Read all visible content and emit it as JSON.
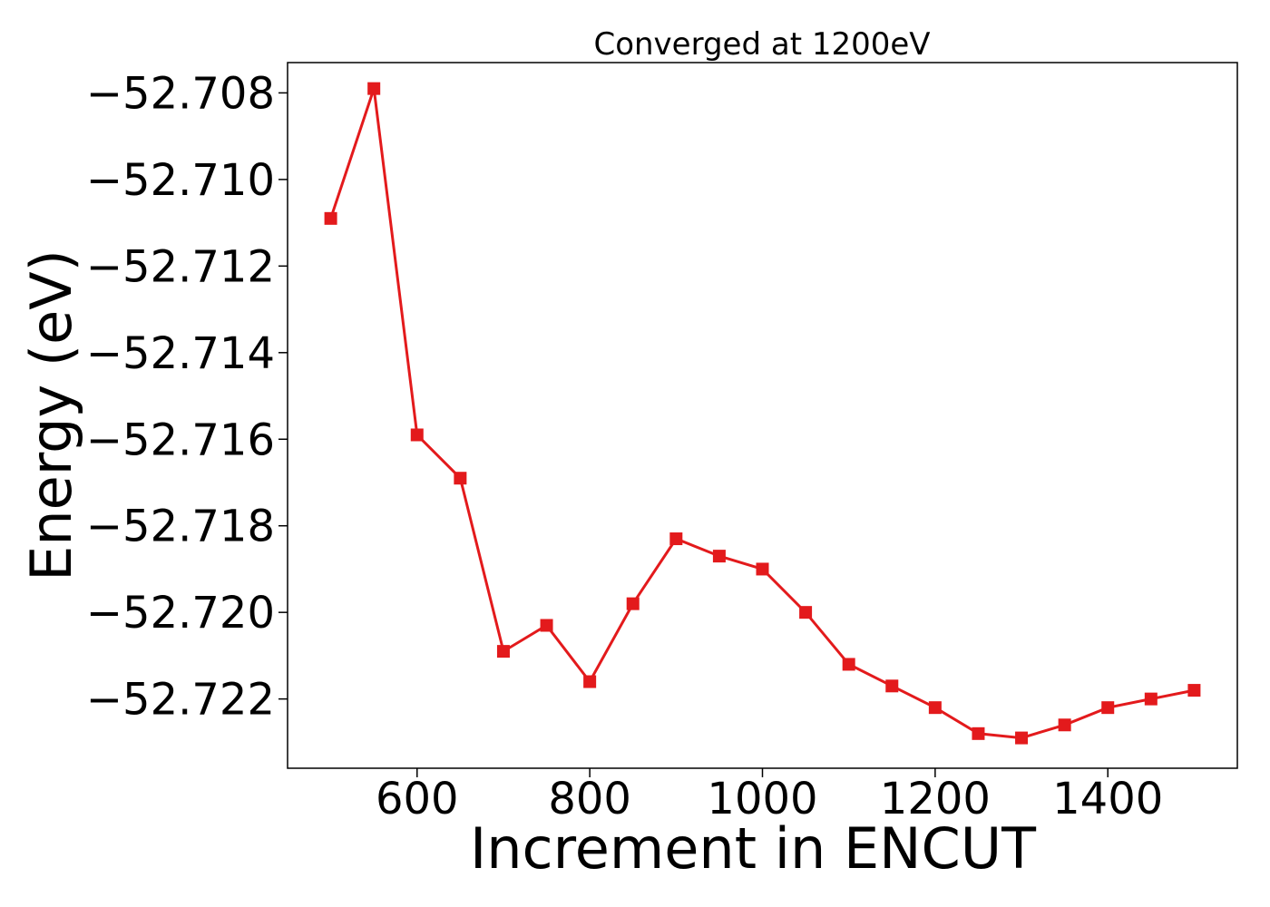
{
  "chart_data": {
    "type": "line",
    "title": "Converged at 1200eV",
    "xlabel": "Increment in ENCUT",
    "ylabel": "Energy (eV)",
    "xlim": [
      450,
      1550
    ],
    "ylim": [
      -52.7236,
      -52.7073
    ],
    "xticks": [
      600,
      800,
      1000,
      1200,
      1400
    ],
    "yticks": [
      -52.708,
      -52.71,
      -52.712,
      -52.714,
      -52.716,
      -52.718,
      -52.72,
      -52.722
    ],
    "ytick_labels": [
      "−52.708",
      "−52.710",
      "−52.712",
      "−52.714",
      "−52.716",
      "−52.718",
      "−52.720",
      "−52.722"
    ],
    "grid": false,
    "series": [
      {
        "color": "#e31a1c",
        "marker": "square",
        "x": [
          500,
          550,
          600,
          650,
          700,
          750,
          800,
          850,
          900,
          950,
          1000,
          1050,
          1100,
          1150,
          1200,
          1250,
          1300,
          1350,
          1400,
          1450,
          1500
        ],
        "y": [
          -52.7109,
          -52.7079,
          -52.7159,
          -52.7169,
          -52.7209,
          -52.7203,
          -52.7216,
          -52.7198,
          -52.7183,
          -52.7187,
          -52.719,
          -52.72,
          -52.7212,
          -52.7217,
          -52.7222,
          -52.7228,
          -52.7229,
          -52.7226,
          -52.7222,
          -52.722,
          -52.7218
        ]
      }
    ]
  }
}
